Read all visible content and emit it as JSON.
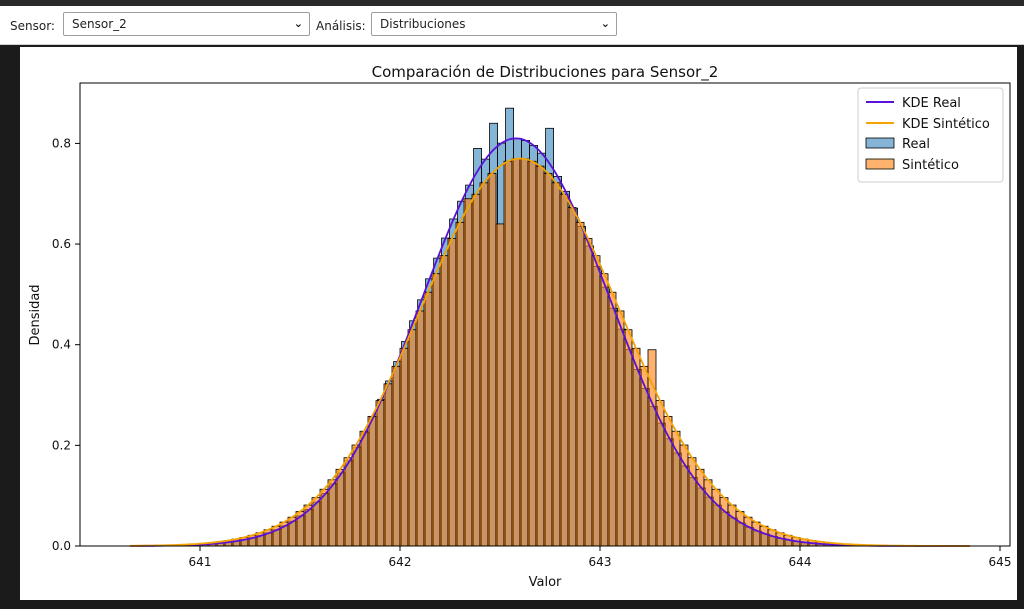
{
  "toolbar": {
    "sensor_label": "Sensor:",
    "sensor_value": "Sensor_2",
    "analysis_label": "Análisis:",
    "analysis_value": "Distribuciones"
  },
  "chart_data": {
    "type": "histogram",
    "title": "Comparación de Distribuciones para Sensor_2",
    "xlabel": "Valor",
    "ylabel": "Densidad",
    "xlim": [
      640.4,
      645.05
    ],
    "ylim": [
      0,
      0.92
    ],
    "xticks": [
      641,
      642,
      643,
      644,
      645
    ],
    "yticks": [
      0.0,
      0.2,
      0.4,
      0.6,
      0.8
    ],
    "bin_width": 0.04,
    "legend_position": "top-right",
    "colors": {
      "real_bar": "#1f77b4",
      "synthetic_bar": "#ff7f0e",
      "kde_real": "#5a10d8",
      "kde_synthetic": "#f5a300"
    },
    "series": [
      {
        "name": "KDE Real",
        "kind": "kde",
        "mean": 642.58,
        "std": 0.47,
        "peak": 0.81
      },
      {
        "name": "KDE Sintético",
        "kind": "kde",
        "mean": 642.6,
        "std": 0.5,
        "peak": 0.77
      },
      {
        "name": "Real",
        "kind": "histogram",
        "mean": 642.58,
        "std": 0.47,
        "peak": 0.81,
        "notable_bins": [
          {
            "x": 642.55,
            "value": 0.87
          },
          {
            "x": 642.47,
            "value": 0.84
          },
          {
            "x": 642.75,
            "value": 0.83
          },
          {
            "x": 642.39,
            "value": 0.79
          }
        ]
      },
      {
        "name": "Sintético",
        "kind": "histogram",
        "mean": 642.6,
        "std": 0.5,
        "peak": 0.77,
        "notable_bins": [
          {
            "x": 642.51,
            "value": 0.64
          },
          {
            "x": 642.35,
            "value": 0.69
          },
          {
            "x": 643.27,
            "value": 0.39
          }
        ]
      }
    ]
  }
}
